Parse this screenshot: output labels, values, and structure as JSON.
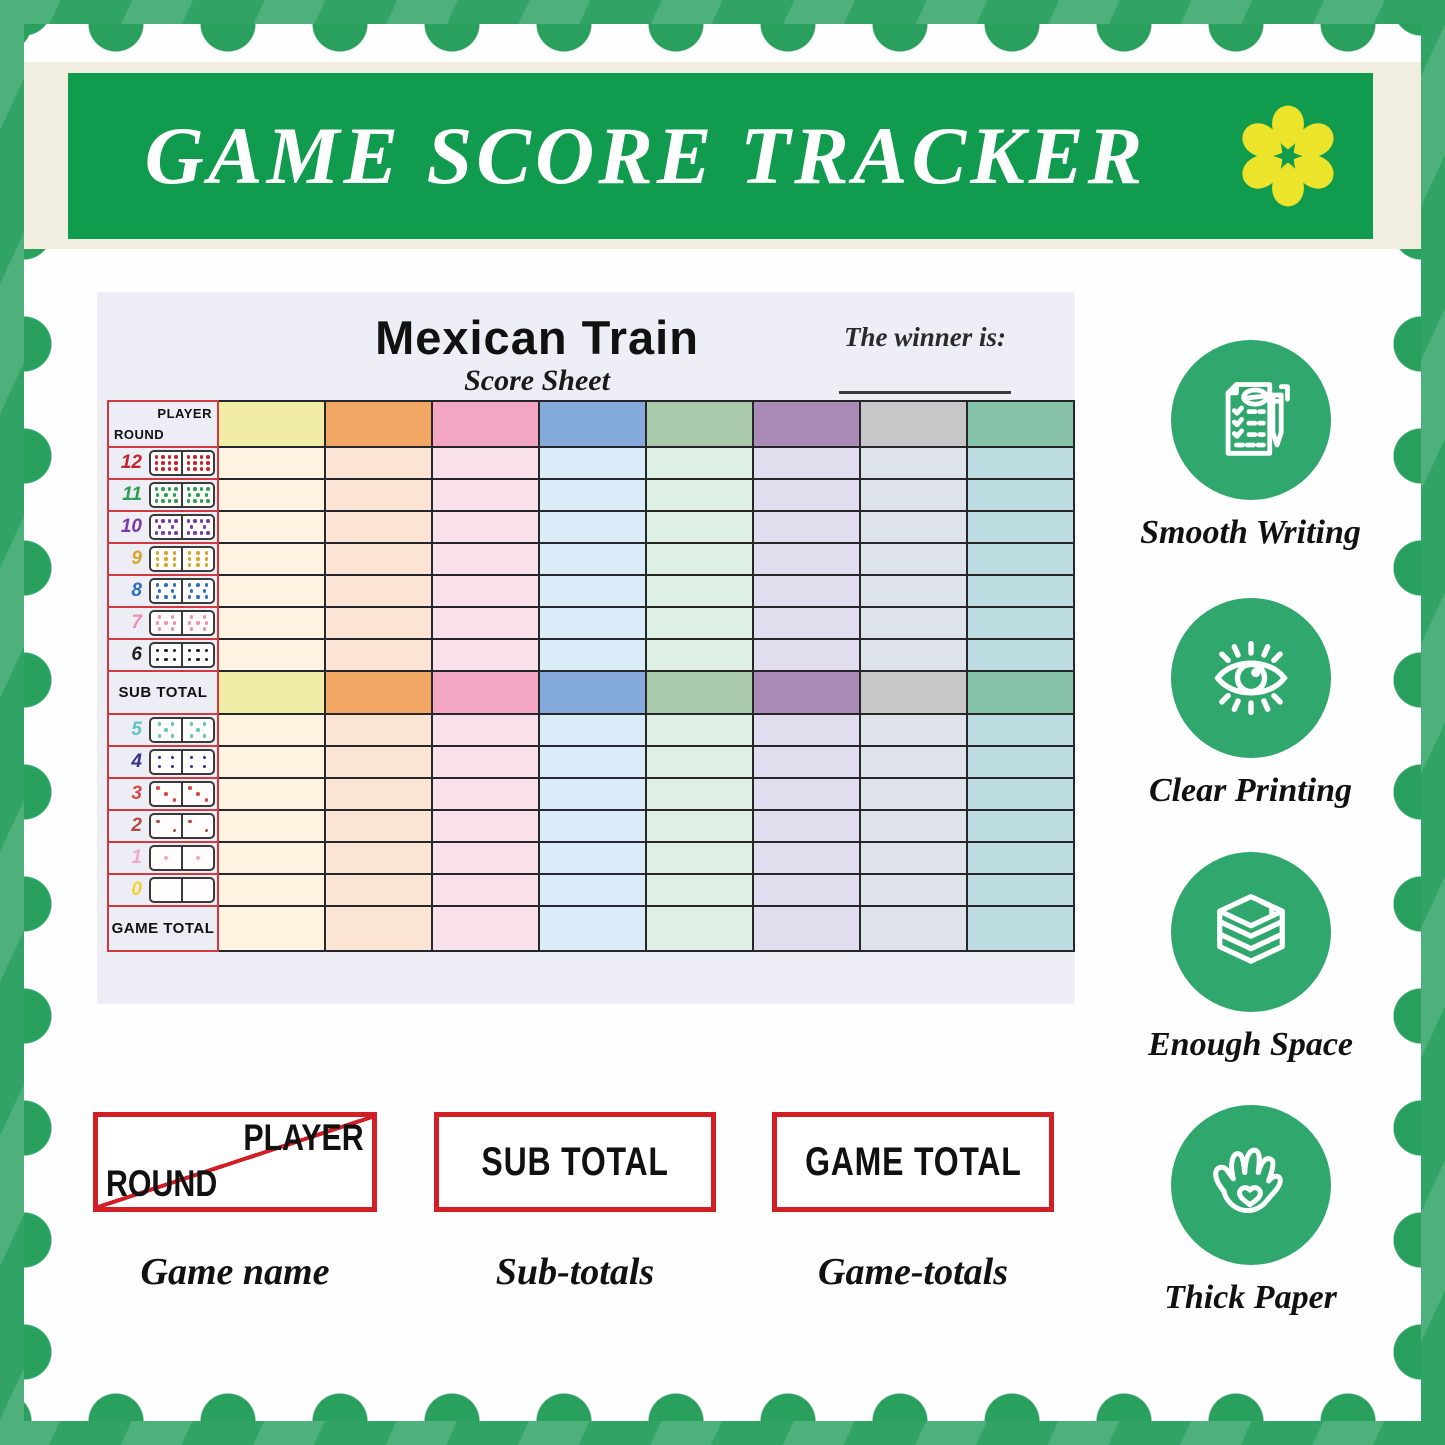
{
  "banner": {
    "title": "GAME SCORE TRACKER",
    "bg_color": "#119b4e",
    "flower_color": "#ece32b"
  },
  "frame": {
    "border_color": "#31a465",
    "bump_color": "#2aa05e",
    "strip_color": "#f1eee0"
  },
  "sheet": {
    "title": "Mexican Train",
    "subtitle": "Score Sheet",
    "winner_label": "The winner is:",
    "corner": {
      "player": "PLAYER",
      "round": "ROUND"
    },
    "sub_total_label": "SUB TOTAL",
    "game_total_label": "GAME TOTAL",
    "bg_color": "#eeeef6",
    "grid_color": "#26262b",
    "accent_red": "#cf3a41",
    "columns": [
      {
        "header": "#f1eda6",
        "body": "#fdf3e0"
      },
      {
        "header": "#efa763",
        "body": "#fbe4d4"
      },
      {
        "header": "#f3a6c3",
        "body": "#f9e1ec"
      },
      {
        "header": "#84abdb",
        "body": "#d9ecf8"
      },
      {
        "header": "#a9cbab",
        "body": "#def0e3"
      },
      {
        "header": "#a98bb6",
        "body": "#e2ddef"
      },
      {
        "header": "#c7c7c7",
        "body": "#dfe3ea"
      },
      {
        "header": "#85c2a7",
        "body": "#bedde2"
      }
    ],
    "rounds_upper": [
      {
        "n": "12",
        "color": "#c5242c",
        "pips": [
          4,
          4,
          4
        ]
      },
      {
        "n": "11",
        "color": "#2d9e50",
        "pips": [
          4,
          3,
          4
        ]
      },
      {
        "n": "10",
        "color": "#7b3aa2",
        "pips": [
          4,
          2,
          4
        ]
      },
      {
        "n": "9",
        "color": "#d8a62a",
        "pips": [
          3,
          3,
          3
        ]
      },
      {
        "n": "8",
        "color": "#2c6fc2",
        "pips": [
          3,
          2,
          3
        ]
      },
      {
        "n": "7",
        "color": "#ef91ad",
        "pips": [
          2,
          3,
          2
        ]
      },
      {
        "n": "6",
        "color": "#1f1f1f",
        "pips": [
          3,
          3
        ]
      }
    ],
    "rounds_lower": [
      {
        "n": "5",
        "color": "#5fc6c2",
        "pips": [
          2,
          1,
          2
        ]
      },
      {
        "n": "4",
        "color": "#343287",
        "pips": [
          2,
          2
        ]
      },
      {
        "n": "3",
        "color": "#d84a41",
        "pips": [
          1,
          1,
          1
        ],
        "align": [
          "al",
          "ac",
          "ar"
        ]
      },
      {
        "n": "2",
        "color": "#b34b3c",
        "pips": [
          1,
          1
        ],
        "align": [
          "al",
          "ar"
        ]
      },
      {
        "n": "1",
        "color": "#efa9cb",
        "pips": [
          1
        ],
        "align": [
          "ac"
        ]
      },
      {
        "n": "0",
        "color": "#f0d42c",
        "pips": []
      }
    ]
  },
  "features": [
    {
      "icon": "checklist-pen-icon",
      "label": "Smooth Writing"
    },
    {
      "icon": "eye-icon",
      "label": "Clear Printing"
    },
    {
      "icon": "paper-stack-icon",
      "label": "Enough Space"
    },
    {
      "icon": "hand-heart-icon",
      "label": "Thick Paper"
    }
  ],
  "callouts": [
    {
      "player": "PLAYER",
      "round": "ROUND",
      "caption": "Game name"
    },
    {
      "label": "SUB TOTAL",
      "caption": "Sub-totals"
    },
    {
      "label": "GAME TOTAL",
      "caption": "Game-totals"
    }
  ]
}
